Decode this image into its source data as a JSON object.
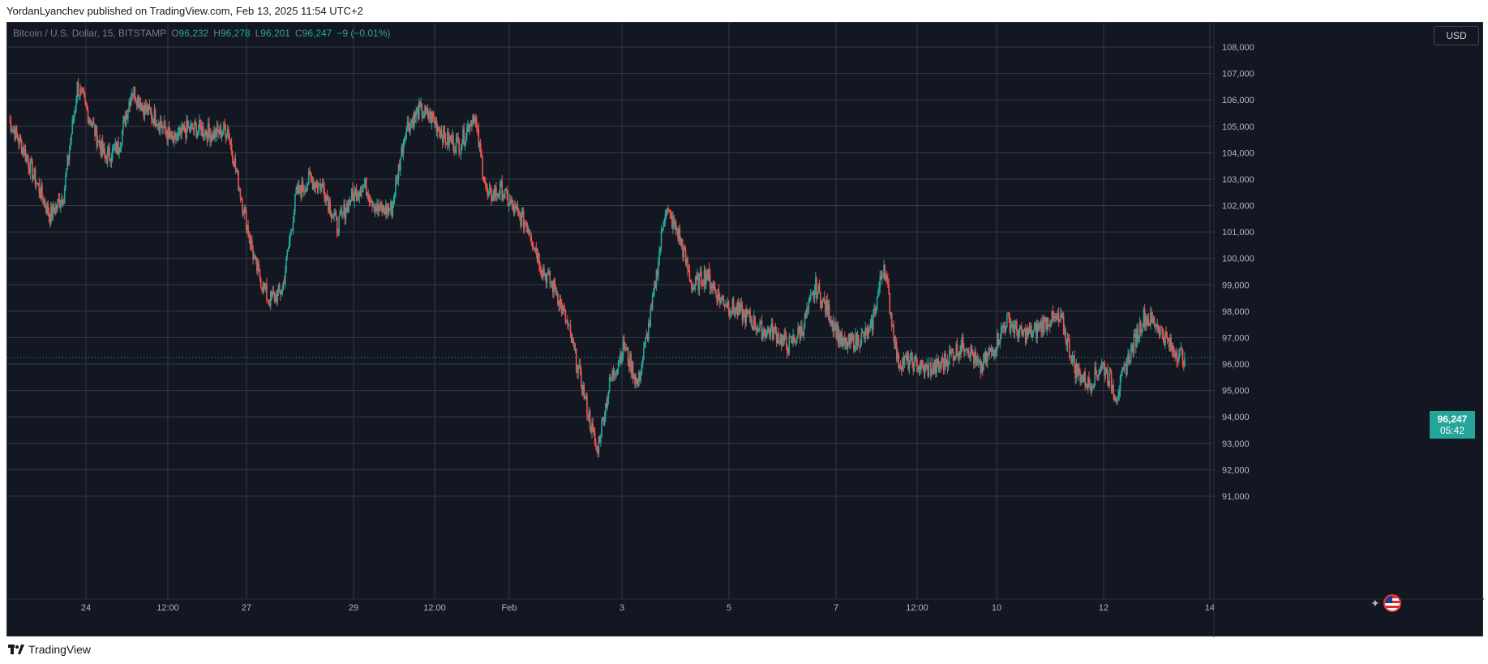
{
  "header": {
    "publish_line": "YordanLyanchev published on TradingView.com, Feb 13, 2025 11:54 UTC+2"
  },
  "legend": {
    "symbol": "Bitcoin / U.S. Dollar, 15, BITSTAMP",
    "o_label": "O",
    "o_value": "96,232",
    "h_label": "H",
    "h_value": "96,278",
    "l_label": "L",
    "l_value": "96,201",
    "c_label": "C",
    "c_value": "96,247",
    "change": "−9 (−0.01%)"
  },
  "currency": "USD",
  "last_price": {
    "value": "96,247",
    "countdown": "05:42",
    "color": "#26a69a"
  },
  "footer": {
    "brand": "TradingView"
  },
  "colors": {
    "background": "#131722",
    "grid": "#363a45",
    "up": "#26a69a",
    "down": "#ef5350",
    "axis_text": "#b2b5be"
  },
  "icons": [
    "sparkle-icon",
    "us-flag-icon",
    "tradingview-logo-icon"
  ],
  "chart_data": {
    "type": "line",
    "title": "",
    "xlabel": "",
    "ylabel": "",
    "ylim": [
      90000,
      108500
    ],
    "grid": true,
    "x_ticks": [
      "24",
      "12:00",
      "27",
      "29",
      "12:00",
      "Feb",
      "3",
      "5",
      "7",
      "12:00",
      "10",
      "12",
      "14"
    ],
    "y_ticks": [
      "108,000",
      "107,000",
      "106,000",
      "105,000",
      "104,000",
      "103,000",
      "102,000",
      "101,000",
      "100,000",
      "99,000",
      "98,000",
      "97,000",
      "96,000",
      "95,000",
      "94,000",
      "93,000",
      "92,000",
      "91,000"
    ],
    "series": [
      {
        "x": [
          "Jan 23 00:00",
          "Jan 23 06:00",
          "Jan 23 12:00",
          "Jan 23 18:00",
          "Jan 24 00:00",
          "Jan 24 03:00",
          "Jan 24 06:00",
          "Jan 24 12:00",
          "Jan 24 18:00",
          "Jan 25 00:00",
          "Jan 25 06:00",
          "Jan 25 12:00",
          "Jan 25 18:00",
          "Jan 26 00:00",
          "Jan 26 12:00",
          "Jan 26 18:00",
          "Jan 27 00:00",
          "Jan 27 06:00",
          "Jan 27 12:00",
          "Jan 27 18:00",
          "Jan 28 00:00",
          "Jan 28 06:00",
          "Jan 28 12:00",
          "Jan 28 18:00",
          "Jan 29 00:00",
          "Jan 29 06:00",
          "Jan 29 12:00",
          "Jan 29 18:00",
          "Jan 30 00:00",
          "Jan 30 06:00",
          "Jan 30 12:00",
          "Jan 30 18:00",
          "Jan 31 00:00",
          "Jan 31 06:00",
          "Jan 31 12:00",
          "Jan 31 18:00",
          "Feb 01 00:00",
          "Feb 01 06:00",
          "Feb 01 12:00",
          "Feb 01 18:00",
          "Feb 02 00:00",
          "Feb 02 06:00",
          "Feb 02 12:00",
          "Feb 02 18:00",
          "Feb 03 00:00",
          "Feb 03 03:00",
          "Feb 03 06:00",
          "Feb 03 12:00",
          "Feb 03 18:00",
          "Feb 04 00:00",
          "Feb 04 06:00",
          "Feb 04 12:00",
          "Feb 04 18:00",
          "Feb 05 00:00",
          "Feb 05 06:00",
          "Feb 05 12:00",
          "Feb 05 18:00",
          "Feb 06 00:00",
          "Feb 06 06:00",
          "Feb 06 12:00",
          "Feb 06 18:00",
          "Feb 07 00:00",
          "Feb 07 06:00",
          "Feb 07 12:00",
          "Feb 07 18:00",
          "Feb 08 00:00",
          "Feb 08 06:00",
          "Feb 08 12:00",
          "Feb 08 18:00",
          "Feb 09 00:00",
          "Feb 09 12:00",
          "Feb 10 00:00",
          "Feb 10 06:00",
          "Feb 10 12:00",
          "Feb 10 18:00",
          "Feb 11 00:00",
          "Feb 11 06:00",
          "Feb 11 12:00",
          "Feb 11 18:00",
          "Feb 12 00:00",
          "Feb 12 06:00",
          "Feb 12 12:00",
          "Feb 12 18:00",
          "Feb 13 00:00",
          "Feb 13 06:00",
          "Feb 13 09:00",
          "Feb 13 11:54"
        ],
        "values": [
          105200,
          104200,
          102900,
          101600,
          102400,
          106500,
          105200,
          103800,
          104200,
          106400,
          105600,
          105200,
          104400,
          104900,
          104900,
          104700,
          104900,
          102300,
          99800,
          98400,
          98800,
          102400,
          103000,
          102700,
          101200,
          102300,
          102800,
          101800,
          101900,
          104900,
          105600,
          105300,
          104500,
          104300,
          105500,
          102300,
          102600,
          101800,
          101200,
          99600,
          98800,
          97200,
          95000,
          92700,
          95400,
          96700,
          95200,
          98000,
          101900,
          100900,
          98900,
          99400,
          98500,
          98100,
          97800,
          97300,
          97200,
          96700,
          97300,
          98900,
          97900,
          96700,
          96900,
          97200,
          99800,
          96100,
          96100,
          95800,
          95900,
          96400,
          96800,
          95800,
          96600,
          97700,
          97100,
          97200,
          97700,
          97600,
          95800,
          95200,
          96000,
          94800,
          96400,
          97800,
          97500,
          96600,
          96247
        ],
        "color": "mixed up/down candles"
      }
    ]
  }
}
